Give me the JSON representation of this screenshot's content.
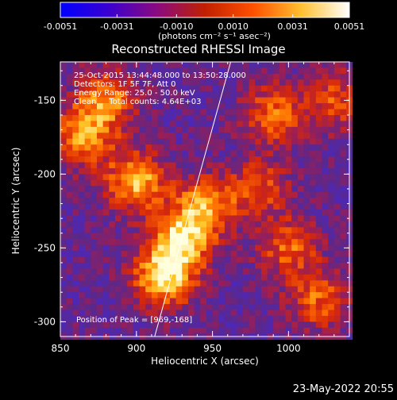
{
  "chart_data": {
    "type": "heatmap",
    "title": "Reconstructed RHESSI Image",
    "xlabel": "Heliocentric X (arcsec)",
    "ylabel": "Heliocentric Y (arcsec)",
    "xlim": [
      850,
      1040
    ],
    "ylim": [
      -310,
      -124
    ],
    "x_ticks": [
      850,
      900,
      950,
      1000
    ],
    "x_tick_labels": [
      "850",
      "900",
      "950",
      "1000"
    ],
    "y_ticks": [
      -150,
      -200,
      -250,
      -300
    ],
    "y_tick_labels": [
      "-150",
      "-200",
      "-250",
      "-300"
    ],
    "colorbar": {
      "range": [
        -0.0051,
        0.0051
      ],
      "tick_values": [
        -0.0051,
        -0.0031,
        -0.001,
        0.001,
        0.0031,
        0.0051
      ],
      "tick_labels": [
        "-0.0051",
        "-0.0031",
        "-0.0010",
        "0.0010",
        "0.0031",
        "0.0051"
      ],
      "units_label": "(photons cm⁻² s⁻¹ asec⁻²)",
      "colors": [
        "#0000ff",
        "#3a00d0",
        "#8a0a80",
        "#c02000",
        "#ff5000",
        "#ffc030",
        "#ffffff"
      ]
    },
    "annotations": [
      "25-Oct-2015 13:44:48.000 to 13:50:28.000",
      "Detectors: 1F 5F 7F, Att 0",
      "Energy Range: 25.0 - 50.0 keV",
      "Clean     Total counts: 4.64E+03"
    ],
    "peak_label": "Position of Peak = [969,-168]",
    "limb_line": {
      "x": [
        912,
        962
      ],
      "y": [
        -310,
        -124
      ]
    },
    "sources": [
      {
        "x": 918,
        "y": -270,
        "intensity": 1.0
      },
      {
        "x": 930,
        "y": -245,
        "intensity": 0.9
      },
      {
        "x": 945,
        "y": -222,
        "intensity": 0.75
      },
      {
        "x": 900,
        "y": -205,
        "intensity": 0.9
      },
      {
        "x": 865,
        "y": -175,
        "intensity": 0.75
      },
      {
        "x": 880,
        "y": -150,
        "intensity": 0.7
      },
      {
        "x": 1000,
        "y": -250,
        "intensity": 0.6
      },
      {
        "x": 990,
        "y": -160,
        "intensity": 0.65
      },
      {
        "x": 980,
        "y": -210,
        "intensity": 0.55
      },
      {
        "x": 1030,
        "y": -150,
        "intensity": 0.55
      },
      {
        "x": 1020,
        "y": -285,
        "intensity": 0.6
      }
    ]
  },
  "footer": {
    "date": "23-May-2022 20:55"
  }
}
